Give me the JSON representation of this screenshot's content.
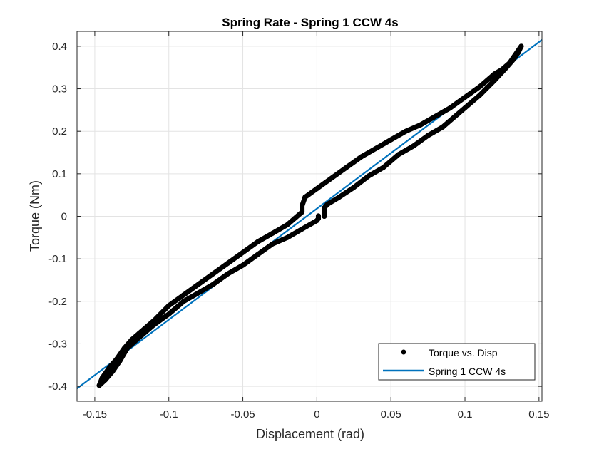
{
  "chart_data": {
    "type": "scatter",
    "title": "Spring Rate - Spring 1 CCW 4s",
    "xlabel": "Displacement (rad)",
    "ylabel": "Torque (Nm)",
    "xlim": [
      -0.162,
      0.152
    ],
    "ylim": [
      -0.435,
      0.435
    ],
    "xticks": [
      -0.15,
      -0.1,
      -0.05,
      0,
      0.05,
      0.1,
      0.15
    ],
    "xtick_labels": [
      "-0.15",
      "-0.1",
      "-0.05",
      "0",
      "0.05",
      "0.1",
      "0.15"
    ],
    "yticks": [
      -0.4,
      -0.3,
      -0.2,
      -0.1,
      0,
      0.1,
      0.2,
      0.3,
      0.4
    ],
    "ytick_labels": [
      "-0.4",
      "-0.3",
      "-0.2",
      "-0.1",
      "0",
      "0.1",
      "0.2",
      "0.3",
      "0.4"
    ],
    "grid": true,
    "legend_position": "bottom-right",
    "series": [
      {
        "name": "Torque vs. Disp",
        "kind": "points",
        "color": "#000000",
        "segments": [
          {
            "x": [
              0.001,
              0.001,
              0.001
            ],
            "y": [
              0.001,
              0.0,
              -0.005
            ]
          },
          {
            "x": [
              0.005,
              0.005,
              0.005,
              0.007,
              0.015,
              0.025,
              0.035,
              0.045,
              0.055,
              0.065,
              0.075,
              0.085,
              0.095,
              0.1,
              0.11,
              0.12,
              0.128,
              0.133,
              0.136,
              0.138
            ],
            "y": [
              0.0,
              0.01,
              0.02,
              0.028,
              0.045,
              0.068,
              0.095,
              0.115,
              0.145,
              0.165,
              0.19,
              0.21,
              0.24,
              0.255,
              0.285,
              0.32,
              0.35,
              0.37,
              0.385,
              0.4
            ]
          },
          {
            "x": [
              0.138,
              0.135,
              0.13,
              0.125,
              0.12,
              0.11,
              0.1,
              0.09,
              0.08,
              0.07,
              0.06,
              0.05,
              0.04,
              0.03,
              0.02,
              0.01,
              0.0,
              -0.008,
              -0.01,
              -0.01
            ],
            "y": [
              0.4,
              0.385,
              0.36,
              0.345,
              0.335,
              0.305,
              0.28,
              0.255,
              0.235,
              0.215,
              0.2,
              0.18,
              0.16,
              0.14,
              0.115,
              0.09,
              0.065,
              0.045,
              0.025,
              0.01
            ]
          },
          {
            "x": [
              -0.01,
              -0.02,
              -0.03,
              -0.04,
              -0.05,
              -0.06,
              -0.07,
              -0.08,
              -0.09,
              -0.1,
              -0.11,
              -0.12,
              -0.125,
              -0.13,
              -0.135,
              -0.14,
              -0.145,
              -0.147
            ],
            "y": [
              0.01,
              -0.02,
              -0.04,
              -0.06,
              -0.085,
              -0.11,
              -0.135,
              -0.16,
              -0.185,
              -0.21,
              -0.245,
              -0.275,
              -0.29,
              -0.31,
              -0.335,
              -0.355,
              -0.38,
              -0.398
            ]
          },
          {
            "x": [
              -0.147,
              -0.143,
              -0.138,
              -0.133,
              -0.128,
              -0.12,
              -0.11,
              -0.1,
              -0.09,
              -0.08,
              -0.07,
              -0.06,
              -0.05,
              -0.04,
              -0.03,
              -0.02,
              -0.01,
              0.0,
              0.001
            ],
            "y": [
              -0.398,
              -0.385,
              -0.365,
              -0.34,
              -0.31,
              -0.285,
              -0.255,
              -0.23,
              -0.2,
              -0.18,
              -0.16,
              -0.135,
              -0.115,
              -0.09,
              -0.065,
              -0.05,
              -0.03,
              -0.01,
              -0.005
            ]
          }
        ]
      },
      {
        "name": "Spring 1 CCW 4s",
        "kind": "line",
        "color": "#0072BD",
        "x": [
          -0.162,
          0.152
        ],
        "y": [
          -0.405,
          0.415
        ]
      }
    ]
  }
}
